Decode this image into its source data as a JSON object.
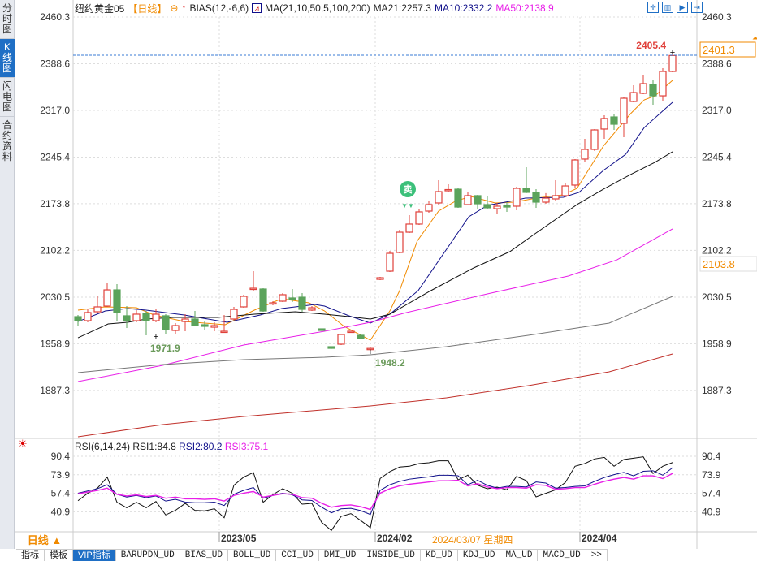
{
  "sidebar": {
    "tabs": [
      {
        "label": "分时图",
        "active": false
      },
      {
        "label": "K线图",
        "active": true
      },
      {
        "label": "闪电图",
        "active": false
      },
      {
        "label": "合约资料",
        "active": false
      }
    ]
  },
  "header": {
    "symbol": "纽约黄金05",
    "period": "【日线】",
    "bias": "BIAS(12,-6,6)",
    "ma_params": "MA(21,10,50,5,100,200)",
    "ma21": "MA21:2257.3",
    "ma10": "MA10:2332.2",
    "ma50": "MA50:2138.9",
    "icons": [
      "crosshair-icon",
      "bar-chart-icon",
      "play-icon",
      "exit-icon"
    ]
  },
  "colors": {
    "up": "#e0403a",
    "down": "#5ba35b",
    "ma5": "#f08a00",
    "ma10": "#10108a",
    "ma21": "#111111",
    "ma50": "#e81ee8",
    "ma100": "#777777",
    "ma200": "#c0302a",
    "rsi1": "#111111",
    "rsi2": "#10108a",
    "rsi3": "#e81ee8"
  },
  "chart_data": [
    {
      "type": "candlestick",
      "ylim": [
        1830,
        2470
      ],
      "yticks": [
        "2460.3",
        "2388.6",
        "2317.0",
        "2245.4",
        "2173.8",
        "2102.2",
        "2030.5",
        "1958.9",
        "1887.3"
      ],
      "xticks": [
        {
          "label": "2023/05",
          "index": 15
        },
        {
          "label": "2024/02",
          "index": 31
        },
        {
          "label": "2024/04",
          "index": 52
        }
      ],
      "crosshair_date": "2024/03/07 星期四",
      "last_price": "2401.3",
      "crosshair_price": "2103.8",
      "annotations": {
        "high": {
          "label": "2405.4",
          "index": 61
        },
        "low1": {
          "label": "1971.9",
          "index": 8
        },
        "low2": {
          "label": "1948.2",
          "index": 30
        },
        "sell_signal": {
          "label": "卖",
          "index": 34
        }
      },
      "ohlc": [
        [
          2000.5,
          2003.0,
          1985.6,
          1994.3
        ],
        [
          1994.3,
          2011.7,
          1991.8,
          2006.8
        ],
        [
          2008.0,
          2031.7,
          2006.8,
          2015.5
        ],
        [
          2016.7,
          2051.6,
          2015.5,
          2041.6
        ],
        [
          2041.6,
          2050.4,
          1994.3,
          2006.8
        ],
        [
          2001.8,
          2016.7,
          1983.1,
          1994.3
        ],
        [
          1994.3,
          2010.5,
          1991.8,
          2004.3
        ],
        [
          2005.5,
          2009.2,
          1971.9,
          1994.3
        ],
        [
          1994.3,
          2013.0,
          1991.8,
          2004.3
        ],
        [
          2001.8,
          2004.3,
          1974.0,
          1980.6
        ],
        [
          1979.3,
          1990.6,
          1974.4,
          1986.8
        ],
        [
          1993.0,
          2004.3,
          1978.1,
          1996.8
        ],
        [
          1996.8,
          2009.2,
          1985.6,
          1986.8
        ],
        [
          1988.1,
          1994.3,
          1979.3,
          1985.6
        ],
        [
          1984.3,
          1991.8,
          1978.1,
          1986.8
        ],
        [
          1976.9,
          2003.0,
          1975.6,
          1978.1
        ],
        [
          1996.8,
          2015.5,
          1995.5,
          2011.7
        ],
        [
          2015.5,
          2034.2,
          2014.2,
          2031.7
        ],
        [
          2042.9,
          2070.3,
          2039.2,
          2044.1
        ],
        [
          2042.9,
          2044.1,
          2008.0,
          2009.2
        ],
        [
          2020.5,
          2024.2,
          2018.0,
          2021.7
        ],
        [
          2024.2,
          2036.7,
          2023.0,
          2034.2
        ],
        [
          2029.2,
          2042.9,
          2023.0,
          2028.0
        ],
        [
          2030.4,
          2036.7,
          2008.0,
          2011.7
        ],
        [
          2010.5,
          2016.7,
          2009.2,
          2014.2
        ],
        [
          1981.8,
          1982.5,
          1978.6,
          1979.3
        ],
        [
          1954.4,
          1955.0,
          1951.2,
          1951.9
        ],
        [
          1958.2,
          1974.4,
          1956.9,
          1973.1
        ],
        [
          1976.9,
          1978.6,
          1976.3,
          1978.1
        ],
        [
          1971.9,
          1973.1,
          1965.6,
          1966.9
        ],
        [
          1950.5,
          1953.0,
          1948.2,
          1951.7
        ],
        [
          2057.8,
          2061.6,
          2056.6,
          2060.3
        ],
        [
          2070.3,
          2101.5,
          2069.1,
          2097.7
        ],
        [
          2099.0,
          2133.8,
          2097.7,
          2130.1
        ],
        [
          2130.1,
          2156.3,
          2128.9,
          2142.6
        ],
        [
          2142.6,
          2165.0,
          2141.3,
          2161.3
        ],
        [
          2162.5,
          2177.5,
          2160.0,
          2172.5
        ],
        [
          2175.0,
          2209.9,
          2171.2,
          2192.4
        ],
        [
          2194.9,
          2203.6,
          2191.2,
          2195.5
        ],
        [
          2196.1,
          2197.4,
          2167.5,
          2168.7
        ],
        [
          2172.5,
          2192.4,
          2171.2,
          2186.2
        ],
        [
          2186.2,
          2187.4,
          2166.2,
          2173.7
        ],
        [
          2172.5,
          2185.0,
          2166.2,
          2167.5
        ],
        [
          2166.2,
          2175.0,
          2158.8,
          2170.0
        ],
        [
          2171.2,
          2176.2,
          2161.3,
          2168.7
        ],
        [
          2170.0,
          2199.9,
          2163.8,
          2197.4
        ],
        [
          2197.4,
          2229.8,
          2190.0,
          2191.2
        ],
        [
          2191.2,
          2196.1,
          2167.5,
          2176.2
        ],
        [
          2176.2,
          2190.0,
          2173.7,
          2182.4
        ],
        [
          2181.2,
          2209.9,
          2178.7,
          2186.2
        ],
        [
          2186.2,
          2205.0,
          2183.7,
          2201.1
        ],
        [
          2202.4,
          2242.3,
          2197.4,
          2241.0
        ],
        [
          2242.3,
          2273.4,
          2238.5,
          2257.2
        ],
        [
          2257.2,
          2288.4,
          2254.7,
          2287.1
        ],
        [
          2288.4,
          2309.5,
          2273.4,
          2304.6
        ],
        [
          2307.0,
          2310.8,
          2287.1,
          2295.8
        ],
        [
          2297.1,
          2337.0,
          2275.9,
          2335.7
        ],
        [
          2330.7,
          2355.6,
          2329.5,
          2344.4
        ],
        [
          2343.2,
          2371.8,
          2341.9,
          2358.1
        ],
        [
          2356.9,
          2364.4,
          2325.7,
          2339.4
        ],
        [
          2339.4,
          2381.8,
          2332.0,
          2376.8
        ],
        [
          2376.8,
          2405.4,
          2375.6,
          2401.3
        ]
      ],
      "ma": {
        "ma5": [
          [
            0,
            2010.5
          ],
          [
            2.8,
            2015.5
          ],
          [
            6,
            2014.2
          ],
          [
            7.8,
            2003.0
          ],
          [
            10.9,
            1993.0
          ],
          [
            15.1,
            1988.1
          ],
          [
            18.1,
            2010.5
          ],
          [
            20.9,
            2028.0
          ],
          [
            23.7,
            2021.7
          ],
          [
            25.3,
            2009.2
          ],
          [
            27.3,
            1985.6
          ],
          [
            30,
            1964.4
          ],
          [
            32,
            2009.2
          ],
          [
            33,
            2040.4
          ],
          [
            34.8,
            2116.4
          ],
          [
            37,
            2162.5
          ],
          [
            38.7,
            2177.5
          ],
          [
            40.3,
            2185.0
          ],
          [
            42.8,
            2175.0
          ],
          [
            44.8,
            2176.2
          ],
          [
            47,
            2182.4
          ],
          [
            49.8,
            2187.4
          ],
          [
            51.2,
            2197.4
          ],
          [
            53.9,
            2262.2
          ],
          [
            56.7,
            2312.0
          ],
          [
            58.1,
            2333.2
          ],
          [
            59.2,
            2339.4
          ],
          [
            61,
            2363.1
          ]
        ],
        "ma10": [
          [
            0,
            1993.0
          ],
          [
            2.8,
            2009.2
          ],
          [
            5.1,
            2013.0
          ],
          [
            7,
            2010.5
          ],
          [
            10.9,
            2003.0
          ],
          [
            15.3,
            1991.8
          ],
          [
            18.7,
            2003.0
          ],
          [
            20.9,
            2013.0
          ],
          [
            24.3,
            2019.2
          ],
          [
            25.3,
            2016.7
          ],
          [
            27.8,
            2001.8
          ],
          [
            30,
            1990.6
          ],
          [
            32,
            2004.3
          ],
          [
            34.9,
            2040.4
          ],
          [
            40.1,
            2153.8
          ],
          [
            42,
            2171.2
          ],
          [
            44.3,
            2177.5
          ],
          [
            45.9,
            2182.4
          ],
          [
            49.8,
            2183.7
          ],
          [
            51.4,
            2191.2
          ],
          [
            53.9,
            2224.8
          ],
          [
            56.2,
            2249.7
          ],
          [
            58.1,
            2290.8
          ],
          [
            61,
            2329.5
          ]
        ],
        "ma21": [
          [
            0,
            1968.1
          ],
          [
            3.1,
            1989.3
          ],
          [
            5.1,
            1991.8
          ],
          [
            7,
            1996.8
          ],
          [
            9.8,
            1999.3
          ],
          [
            14.3,
            1999.3
          ],
          [
            18.1,
            2004.3
          ],
          [
            22.3,
            2008.0
          ],
          [
            25.3,
            2004.3
          ],
          [
            27.8,
            2000.5
          ],
          [
            30,
            1996.8
          ],
          [
            32,
            2004.3
          ],
          [
            36.2,
            2040.4
          ],
          [
            40.6,
            2075.3
          ],
          [
            44.3,
            2100.2
          ],
          [
            47,
            2128.9
          ],
          [
            51.2,
            2172.5
          ],
          [
            53.9,
            2196.1
          ],
          [
            56.7,
            2218.6
          ],
          [
            59.2,
            2237.3
          ],
          [
            61,
            2253.5
          ]
        ],
        "ma50": [
          [
            0,
            1900.8
          ],
          [
            8.7,
            1925.8
          ],
          [
            17,
            1956.9
          ],
          [
            25.3,
            1978.1
          ],
          [
            30,
            1991.8
          ],
          [
            33.7,
            2006.8
          ],
          [
            42,
            2035.4
          ],
          [
            50.3,
            2062.8
          ],
          [
            55.3,
            2087.7
          ],
          [
            61,
            2135.1
          ]
        ],
        "ma100": [
          [
            0,
            1914.6
          ],
          [
            8.7,
            1927.0
          ],
          [
            17,
            1934.5
          ],
          [
            25.3,
            1938.2
          ],
          [
            30,
            1942.0
          ],
          [
            37.8,
            1954.4
          ],
          [
            46.2,
            1971.9
          ],
          [
            54.5,
            1990.6
          ],
          [
            61,
            2031.7
          ]
        ],
        "ma200": [
          [
            0,
            1816.1
          ],
          [
            8.7,
            1834.8
          ],
          [
            17,
            1847.3
          ],
          [
            30,
            1863.5
          ],
          [
            37.8,
            1875.9
          ],
          [
            46.2,
            1894.6
          ],
          [
            54.5,
            1915.8
          ],
          [
            61,
            1943.2
          ]
        ]
      }
    },
    {
      "type": "line",
      "title": "RSI(6,14,24)",
      "ylim": [
        20,
        95
      ],
      "yticks": [
        "90.4",
        "73.9",
        "57.4",
        "40.9"
      ],
      "series": [
        {
          "name": "RSI1:84.8",
          "values": [
            50.8,
            57.4,
            62,
            71.8,
            49.4,
            44.5,
            49.4,
            44.5,
            50.1,
            38.1,
            42.2,
            48.4,
            42.2,
            41.7,
            43.6,
            35.6,
            64.6,
            71.8,
            75.9,
            49.4,
            56.2,
            61.5,
            57.4,
            47.7,
            48.4,
            31.5,
            24.3,
            36.8,
            39.3,
            33.2,
            26.7,
            70.6,
            76.7,
            80.8,
            81.5,
            83.9,
            84.6,
            86.3,
            86.3,
            69.4,
            73.5,
            64.6,
            61.5,
            62.9,
            60.5,
            72.5,
            68.7,
            54.2,
            57.4,
            60.5,
            67.0,
            81.5,
            83.9,
            88.0,
            89.4,
            81.5,
            87.5,
            88.7,
            89.9,
            75.0,
            81.5,
            84.8
          ]
        },
        {
          "name": "RSI2:80.2",
          "values": [
            57.5,
            59.5,
            61.5,
            65.0,
            56.5,
            54.0,
            55.5,
            53.5,
            55.0,
            50.5,
            52.0,
            49.5,
            49.0,
            49.0,
            49.5,
            46.5,
            56.5,
            60.0,
            62.5,
            53.0,
            55.5,
            57.5,
            56.0,
            51.5,
            51.0,
            45.0,
            40.0,
            43.5,
            44.0,
            42.0,
            38.5,
            60.0,
            65.0,
            68.0,
            70.0,
            71.0,
            72.0,
            73.5,
            73.5,
            73.0,
            65.0,
            69.0,
            64.5,
            62.0,
            63.5,
            63.5,
            63.0,
            67.5,
            66.5,
            62.0,
            62.5,
            63.5,
            64.0,
            68.0,
            71.5,
            74.0,
            76.0,
            73.0,
            77.0,
            77.5,
            73.5,
            80.2
          ]
        },
        {
          "name": "RSI3:75.1",
          "values": [
            57.0,
            58.5,
            60.0,
            62.0,
            56.5,
            55.0,
            56.0,
            54.5,
            55.5,
            53.0,
            54.0,
            52.5,
            52.5,
            52.0,
            52.5,
            50.5,
            55.5,
            57.5,
            59.0,
            54.0,
            55.5,
            57.0,
            56.5,
            53.5,
            53.0,
            48.5,
            45.0,
            46.5,
            47.0,
            45.5,
            43.0,
            57.5,
            61.5,
            64.0,
            65.5,
            66.5,
            67.5,
            68.5,
            68.5,
            69.0,
            64.0,
            66.0,
            63.0,
            61.5,
            62.5,
            62.5,
            62.0,
            65.0,
            64.5,
            61.0,
            61.5,
            62.5,
            62.5,
            65.5,
            68.0,
            70.0,
            71.5,
            70.0,
            73.0,
            73.0,
            70.5,
            75.1
          ]
        }
      ]
    }
  ],
  "footer": {
    "period_button": "日线 ▲",
    "tabs": [
      {
        "label": "指标",
        "active": false
      },
      {
        "label": "模板",
        "active": false
      },
      {
        "label": "VIP指标",
        "active": true
      },
      {
        "label": "BARUPDN_UD"
      },
      {
        "label": "BIAS_UD"
      },
      {
        "label": "BOLL_UD"
      },
      {
        "label": "CCI_UD"
      },
      {
        "label": "DMI_UD"
      },
      {
        "label": "INSIDE_UD"
      },
      {
        "label": "KD_UD"
      },
      {
        "label": "KDJ_UD"
      },
      {
        "label": "MA_UD"
      },
      {
        "label": "MACD_UD"
      },
      {
        "label": ">>"
      }
    ]
  }
}
